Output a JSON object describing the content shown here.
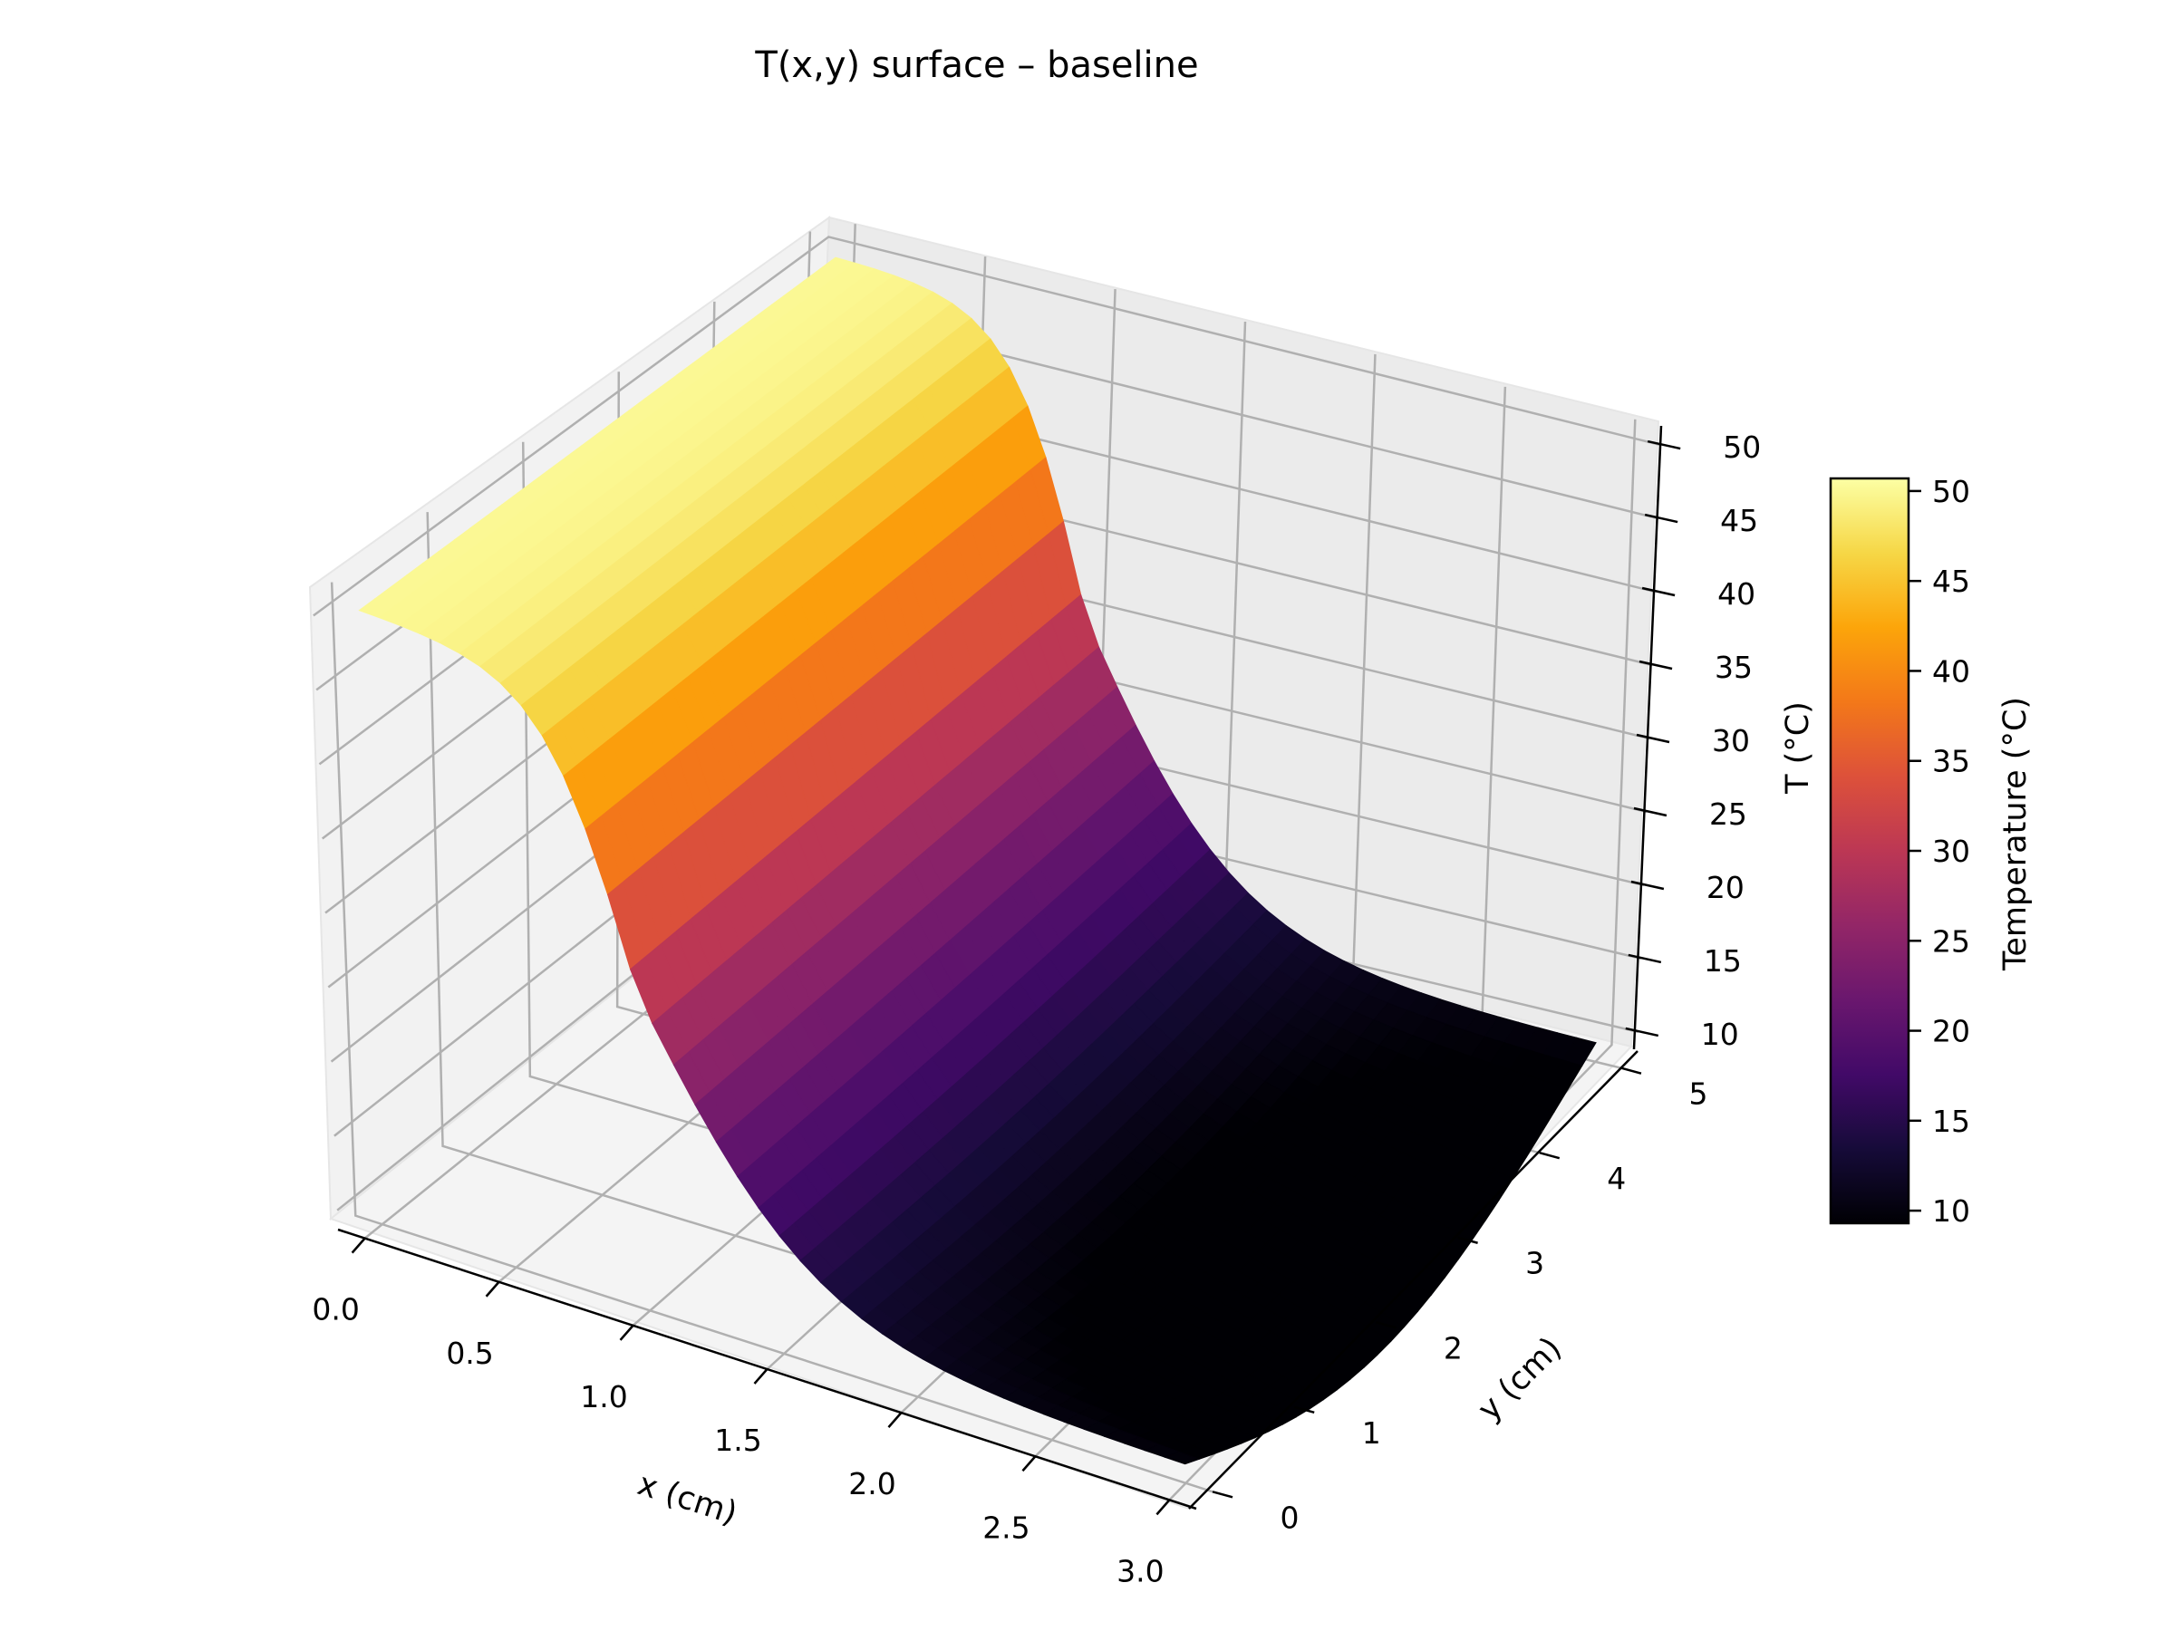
{
  "chart_data": {
    "type": "surface3d",
    "title": "T(x,y) surface – baseline",
    "xlabel": "x (cm)",
    "ylabel": "y (cm)",
    "zlabel": "T (°C)",
    "colorbar_label": "Temperature (°C)",
    "colormap": "inferno",
    "xlim": [
      -0.1,
      3.1
    ],
    "ylim": [
      -0.2,
      5.2
    ],
    "zlim": [
      8.7,
      51.3
    ],
    "x_ticks": [
      "0.0",
      "0.5",
      "1.0",
      "1.5",
      "2.0",
      "2.5",
      "3.0"
    ],
    "y_ticks": [
      "0",
      "1",
      "2",
      "3",
      "4",
      "5"
    ],
    "z_ticks": [
      "10",
      "15",
      "20",
      "25",
      "30",
      "35",
      "40",
      "45",
      "50"
    ],
    "colorbar_ticks": [
      "10",
      "15",
      "20",
      "25",
      "30",
      "35",
      "40",
      "45",
      "50"
    ],
    "colorbar_range": [
      9.3,
      50.7
    ],
    "surface": {
      "x_range": [
        0,
        3
      ],
      "y_range": [
        0,
        5
      ],
      "description_values": {
        "T_at_x0_y5": 50,
        "T_at_x0_y0": 50,
        "T_at_x1_y2_center": 30,
        "T_at_x3_y0": 10,
        "T_at_x3_y5": 10
      },
      "min": 9.3,
      "max": 50.7
    },
    "grid": true,
    "colorbar_position": "right"
  }
}
